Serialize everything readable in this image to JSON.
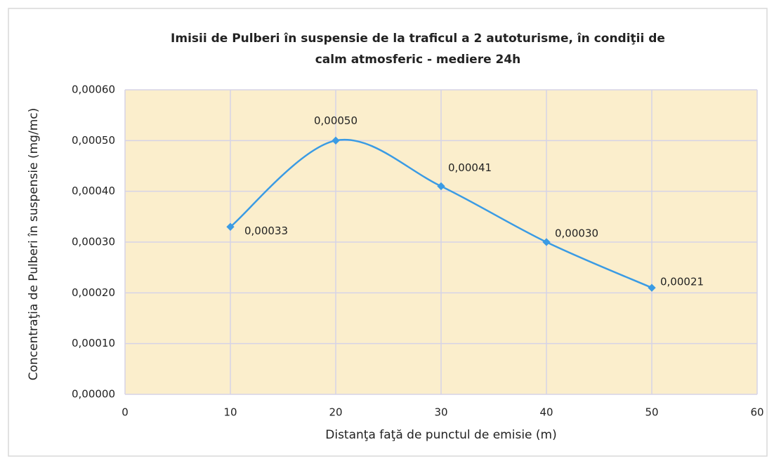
{
  "chart_data": {
    "type": "line",
    "title": [
      "Imisii de Pulberi în suspensie de la traficul a 2 autoturisme, în condiţii de",
      "calm atmosferic - mediere 24h"
    ],
    "x_label": "Distanţa faţă de punctul de emisie (m)",
    "y_label": "Concentraţia de  Pulberi în suspensie (mg/mc)",
    "x": [
      10,
      20,
      30,
      40,
      50
    ],
    "series": [
      {
        "name": "Pulberi",
        "color": "#3a9be4",
        "values": [
          0.00033,
          0.0005,
          0.00041,
          0.0003,
          0.00021
        ],
        "value_labels": [
          "0,00033",
          "0,00050",
          "0,00041",
          "0,00030",
          "0,00021"
        ]
      }
    ],
    "xlim": [
      0,
      60
    ],
    "xticks": [
      0,
      10,
      20,
      30,
      40,
      50,
      60
    ],
    "ylim": [
      0,
      0.0006
    ],
    "yticks": [
      {
        "value": 0,
        "label": "0,00000"
      },
      {
        "value": 0.0001,
        "label": "0,00010"
      },
      {
        "value": 0.0002,
        "label": "0,00020"
      },
      {
        "value": 0.0003,
        "label": "0,00030"
      },
      {
        "value": 0.0004,
        "label": "0,00040"
      },
      {
        "value": 0.0005,
        "label": "0,00050"
      },
      {
        "value": 0.0006,
        "label": "0,00060"
      }
    ],
    "grid": true,
    "plot_background": "#fbeecc"
  }
}
